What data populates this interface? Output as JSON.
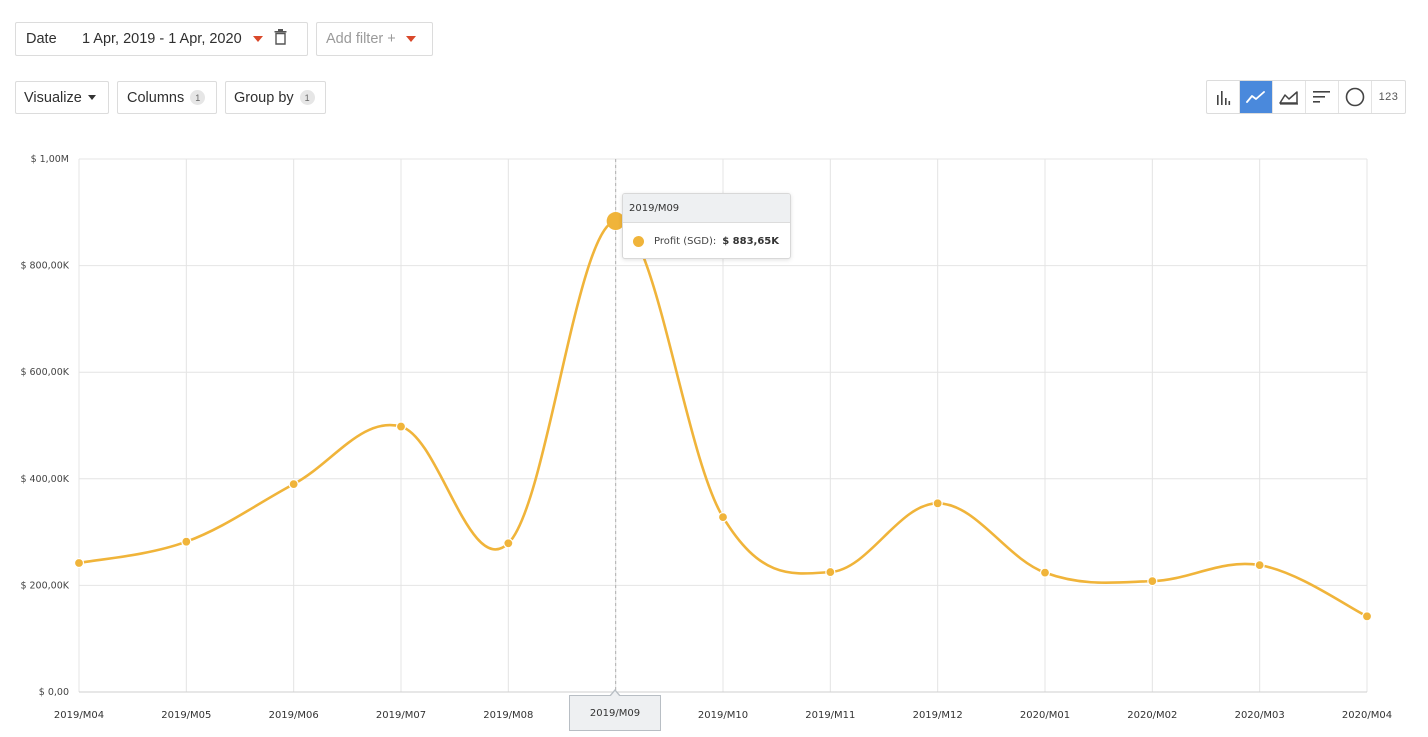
{
  "filters": {
    "date_label": "Date",
    "date_range": "1 Apr, 2019 - 1 Apr, 2020",
    "add_filter_label": "Add filter +"
  },
  "toolbar": {
    "visualize_label": "Visualize",
    "columns_label": "Columns",
    "columns_count": "1",
    "groupby_label": "Group by",
    "groupby_count": "1"
  },
  "viz_types": {
    "items": [
      "bar-chart-icon",
      "line-chart-icon",
      "area-chart-icon",
      "sorted-bar-icon",
      "pie-chart-icon",
      "number-view"
    ],
    "active": "line-chart-icon",
    "number_label": "123"
  },
  "colors": {
    "series": "#f0b43a",
    "active_button": "#4a89dc",
    "caret": "#d9482a"
  },
  "tooltip": {
    "title": "2019/M09",
    "series_label": "Profit (SGD):",
    "value": "$ 883,65K"
  },
  "x_highlight": "2019/M09",
  "chart_data": {
    "type": "line",
    "x": [
      "2019/M04",
      "2019/M05",
      "2019/M06",
      "2019/M07",
      "2019/M08",
      "2019/M09",
      "2019/M10",
      "2019/M11",
      "2019/M12",
      "2020/M01",
      "2020/M02",
      "2020/M03",
      "2020/M04"
    ],
    "series": [
      {
        "name": "Profit (SGD)",
        "values": [
          242000,
          282000,
          390000,
          498000,
          279000,
          883650,
          328000,
          225000,
          354000,
          224000,
          208000,
          238000,
          142000
        ]
      }
    ],
    "ylim": [
      0,
      1000000
    ],
    "yticks": [
      0,
      200000,
      400000,
      600000,
      800000,
      1000000
    ],
    "ytick_labels": [
      "$ 0,00",
      "$ 200,00K",
      "$ 400,00K",
      "$ 600,00K",
      "$ 800,00K",
      "$ 1,00M"
    ],
    "grid": true,
    "highlighted_index": 5
  }
}
